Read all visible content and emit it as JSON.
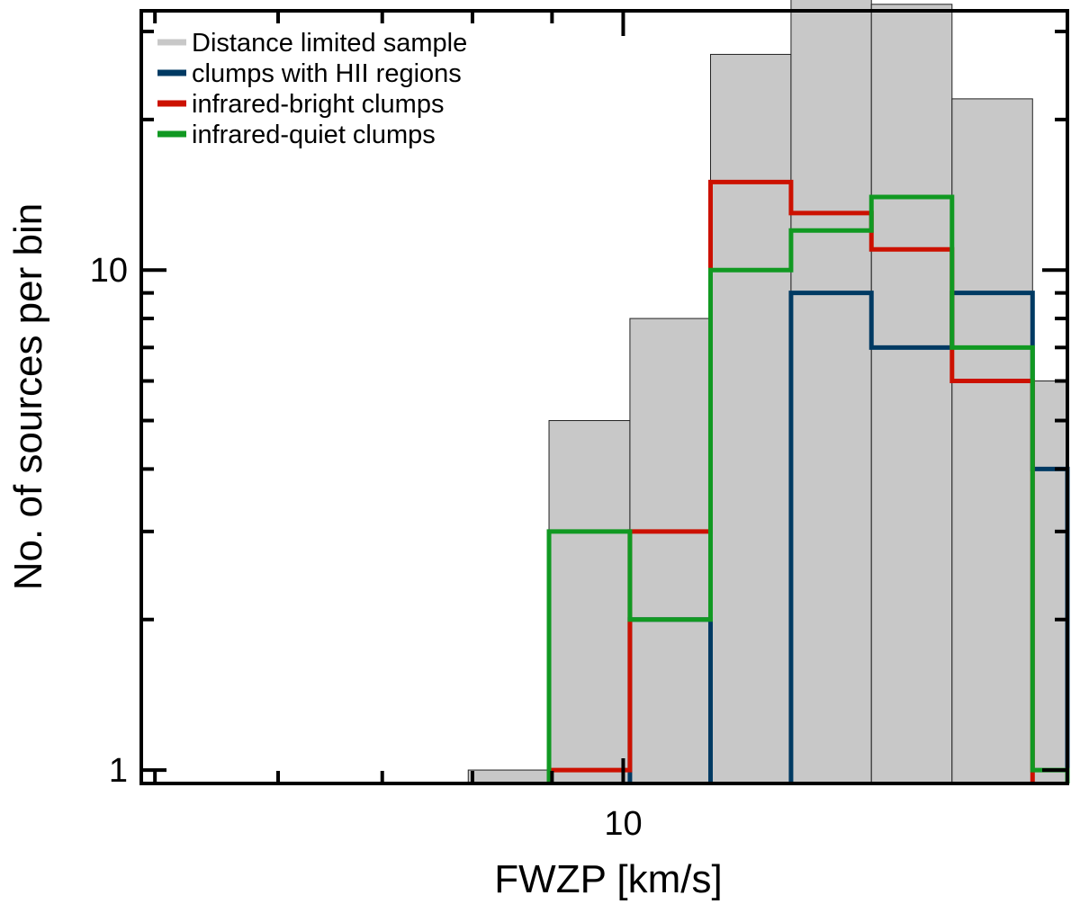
{
  "chart_data": {
    "type": "bar",
    "xlabel": "FWZP [km/s]",
    "ylabel": "No. of sources per bin",
    "x_scale": "log",
    "y_scale": "log",
    "xlim": [
      4.9,
      19.3
    ],
    "ylim": [
      0.94,
      33
    ],
    "x_ticks": [
      {
        "value": 10,
        "label": "10"
      }
    ],
    "y_ticks": [
      {
        "value": 1,
        "label": "1"
      },
      {
        "value": 10,
        "label": "10"
      }
    ],
    "bin_edges": [
      7.95,
      8.96,
      10.1,
      11.38,
      12.82,
      14.44,
      16.27,
      18.33,
      20.65
    ],
    "series": [
      {
        "name": "Distance limited sample",
        "color": "#c8c8c8",
        "style": "filled",
        "values": [
          1,
          5,
          8,
          27,
          39,
          34,
          22,
          6
        ]
      },
      {
        "name": "clumps with HII regions",
        "color": "#003a63",
        "style": "step",
        "values": [
          null,
          null,
          2,
          null,
          9,
          7,
          9,
          4
        ]
      },
      {
        "name": "infrared-bright clumps",
        "color": "#cc1100",
        "style": "step",
        "values": [
          null,
          1,
          3,
          15,
          13,
          11,
          6,
          null
        ]
      },
      {
        "name": "infrared-quiet clumps",
        "color": "#119922",
        "style": "step",
        "values": [
          null,
          3,
          2,
          10,
          12,
          14,
          7,
          1
        ]
      }
    ],
    "legend_position": "top-left",
    "grid": false
  }
}
